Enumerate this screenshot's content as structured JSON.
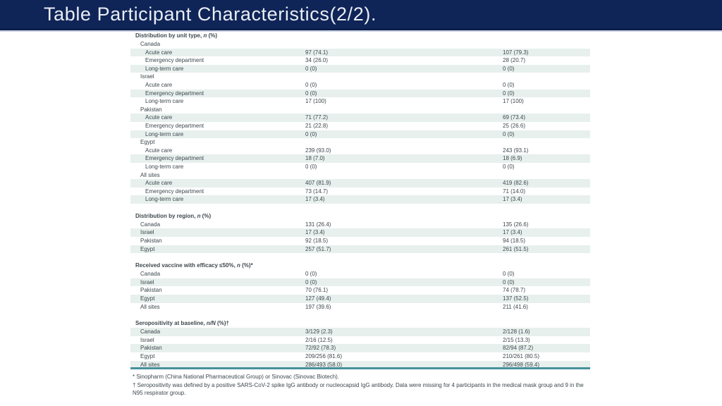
{
  "header": {
    "title": "Table Participant Characteristics(2/2)."
  },
  "colors": {
    "navy": "#0f2457",
    "navy_shadow": "#0a1b44",
    "bar_underline": "#c8cfe2",
    "row_shade": "#e7f0ed",
    "teal_line": "#468f9b",
    "table_text": "#3d474c",
    "title_text": "#e9edf4"
  },
  "table": {
    "sections": [
      {
        "header": {
          "pre": "Distribution by unit type, ",
          "italic": "n",
          "post": " (%)"
        },
        "rows": [
          {
            "label": "Canada",
            "indent": 2,
            "c1": "",
            "c2": "",
            "shaded": false
          },
          {
            "label": "Acute care",
            "indent": 3,
            "c1": "97 (74.1)",
            "c2": "107 (79.3)",
            "shaded": true
          },
          {
            "label": "Emergency department",
            "indent": 3,
            "c1": "34 (26.0)",
            "c2": "28 (20.7)",
            "shaded": false
          },
          {
            "label": "Long-term care",
            "indent": 3,
            "c1": "0 (0)",
            "c2": "0 (0)",
            "shaded": true
          },
          {
            "label": "Israel",
            "indent": 2,
            "c1": "",
            "c2": "",
            "shaded": false
          },
          {
            "label": "Acute care",
            "indent": 3,
            "c1": "0 (0)",
            "c2": "0 (0)",
            "shaded": false
          },
          {
            "label": "Emergency department",
            "indent": 3,
            "c1": "0 (0)",
            "c2": "0 (0)",
            "shaded": true
          },
          {
            "label": "Long-term care",
            "indent": 3,
            "c1": "17 (100)",
            "c2": "17 (100)",
            "shaded": false
          },
          {
            "label": "Pakistan",
            "indent": 2,
            "c1": "",
            "c2": "",
            "shaded": false
          },
          {
            "label": "Acute care",
            "indent": 3,
            "c1": "71 (77.2)",
            "c2": "69 (73.4)",
            "shaded": true
          },
          {
            "label": "Emergency department",
            "indent": 3,
            "c1": "21 (22.8)",
            "c2": "25 (26.6)",
            "shaded": false
          },
          {
            "label": "Long-term care",
            "indent": 3,
            "c1": "0 (0)",
            "c2": "0 (0)",
            "shaded": true
          },
          {
            "label": "Egypt",
            "indent": 2,
            "c1": "",
            "c2": "",
            "shaded": false
          },
          {
            "label": "Acute care",
            "indent": 3,
            "c1": "239 (93.0)",
            "c2": "243 (93.1)",
            "shaded": false
          },
          {
            "label": "Emergency department",
            "indent": 3,
            "c1": "18 (7.0)",
            "c2": "18 (6.9)",
            "shaded": true
          },
          {
            "label": "Long-term care",
            "indent": 3,
            "c1": "0 (0)",
            "c2": "0 (0)",
            "shaded": false
          },
          {
            "label": "All sites",
            "indent": 2,
            "c1": "",
            "c2": "",
            "shaded": false
          },
          {
            "label": "Acute care",
            "indent": 3,
            "c1": "407 (81.9)",
            "c2": "419 (82.6)",
            "shaded": true
          },
          {
            "label": "Emergency department",
            "indent": 3,
            "c1": "73 (14.7)",
            "c2": "71 (14.0)",
            "shaded": false
          },
          {
            "label": "Long-term care",
            "indent": 3,
            "c1": "17 (3.4)",
            "c2": "17 (3.4)",
            "shaded": true
          }
        ]
      },
      {
        "header": {
          "pre": "Distribution by region, ",
          "italic": "n",
          "post": " (%)"
        },
        "rows": [
          {
            "label": "Canada",
            "indent": 2,
            "c1": "131 (26.4)",
            "c2": "135 (26.6)",
            "shaded": false
          },
          {
            "label": "Israel",
            "indent": 2,
            "c1": "17 (3.4)",
            "c2": "17 (3.4)",
            "shaded": true
          },
          {
            "label": "Pakistan",
            "indent": 2,
            "c1": "92 (18.5)",
            "c2": "94 (18.5)",
            "shaded": false
          },
          {
            "label": "Egypt",
            "indent": 2,
            "c1": "257 (51.7)",
            "c2": "261 (51.5)",
            "shaded": true
          }
        ]
      },
      {
        "header": {
          "pre": "Received vaccine with efficacy ≤50%, ",
          "italic": "n",
          "post": " (%)*"
        },
        "rows": [
          {
            "label": "Canada",
            "indent": 2,
            "c1": "0 (0)",
            "c2": "0 (0)",
            "shaded": false
          },
          {
            "label": "Israel",
            "indent": 2,
            "c1": "0 (0)",
            "c2": "0 (0)",
            "shaded": true
          },
          {
            "label": "Pakistan",
            "indent": 2,
            "c1": "70 (76.1)",
            "c2": "74 (78.7)",
            "shaded": false
          },
          {
            "label": "Egypt",
            "indent": 2,
            "c1": "127 (49.4)",
            "c2": "137 (52.5)",
            "shaded": true
          },
          {
            "label": "All sites",
            "indent": 2,
            "c1": "197 (39.6)",
            "c2": "211 (41.6)",
            "shaded": false
          }
        ]
      },
      {
        "header": {
          "pre": "Seropositivity at baseline, ",
          "italic": "n/N",
          "post": " (%)†"
        },
        "rows": [
          {
            "label": "Canada",
            "indent": 2,
            "c1": "3/129 (2.3)",
            "c2": "2/128 (1.6)",
            "shaded": true
          },
          {
            "label": "Israel",
            "indent": 2,
            "c1": "2/16 (12.5)",
            "c2": "2/15 (13.3)",
            "shaded": false
          },
          {
            "label": "Pakistan",
            "indent": 2,
            "c1": "72/92 (78.3)",
            "c2": "82/94 (87.2)",
            "shaded": true
          },
          {
            "label": "Egypt",
            "indent": 2,
            "c1": "209/256 (81.6)",
            "c2": "210/261 (80.5)",
            "shaded": false
          },
          {
            "label": "All sites",
            "indent": 2,
            "c1": "286/493 (58.0)",
            "c2": "296/498 (59.4)",
            "shaded": true
          }
        ]
      }
    ]
  },
  "footnotes": [
    "* Sinopharm (China National Pharmaceutical Group) or Sinovac (Sinovac Biotech).",
    "† Seropositivity was defined by a positive SARS-CoV-2 spike IgG antibody or nucleocapsid IgG antibody. Data were missing for 4 participants in the medical mask group and 9 in the N95 respirator group."
  ]
}
